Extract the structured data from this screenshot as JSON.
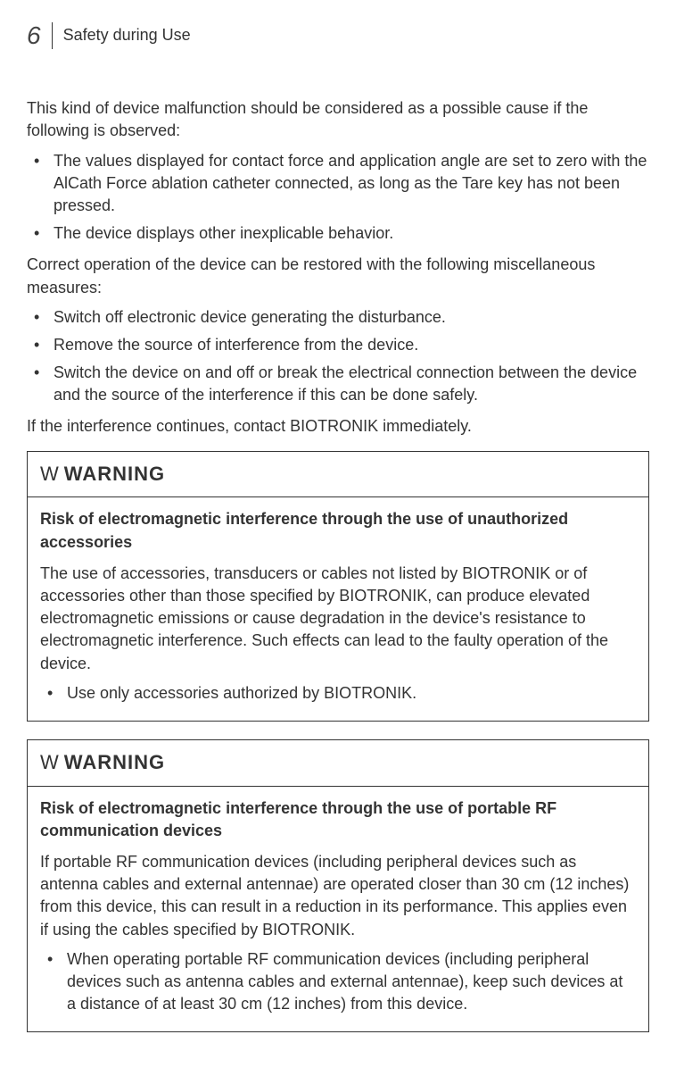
{
  "header": {
    "page_number": "6",
    "section_title": "Safety during Use"
  },
  "intro": "This kind of device malfunction should be considered as a possible cause if the following is observed:",
  "observations": [
    "The values displayed for contact force and application angle are set to zero with the AlCath Force ablation catheter connected, as long as the Tare key has not been pressed.",
    "The device displays other inexplicable behavior."
  ],
  "measures_intro": "Correct operation of the device can be restored with the following miscellaneous measures:",
  "measures": [
    "Switch off electronic device generating the disturbance.",
    "Remove the source of interference from the device.",
    "Switch the device on and off or break the electrical connection between the device and the source of the interference if this can be done safely."
  ],
  "contact_text": "If the interference continues, contact BIOTRONIK immediately.",
  "warning1": {
    "icon": "W",
    "label": "WARNING",
    "subtitle": "Risk of electromagnetic interference through the use of unauthorized accessories",
    "body": "The use of accessories, transducers or cables not listed by BIOTRONIK or of accessories other than those specified by BIOTRONIK, can produce elevated electromagnetic emissions or cause degradation in the device's resistance to electromagnetic interference. Such effects can lead to the faulty operation of the device.",
    "bullets": [
      "Use only accessories authorized by BIOTRONIK."
    ]
  },
  "warning2": {
    "icon": "W",
    "label": "WARNING",
    "subtitle": "Risk of electromagnetic interference through the use of portable RF communication devices",
    "body": "If portable RF communication devices (including peripheral devices such as antenna cables and external antennae) are operated closer than 30 cm (12 inches) from this device, this can result in a reduction in its performance. This applies even if using the cables specified by BIOTRONIK.",
    "bullets": [
      "When operating portable RF communication devices (including peripheral devices such as antenna cables and external antennae), keep such devices at a distance of at least 30 cm (12 inches) from this device."
    ]
  }
}
